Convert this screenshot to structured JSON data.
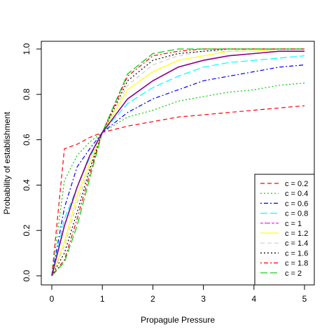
{
  "chart_data": {
    "type": "line",
    "title": "",
    "xlabel": "Propagule Pressure",
    "ylabel": "Probability of establishment",
    "xlim": [
      0,
      5
    ],
    "ylim": [
      0,
      1
    ],
    "x_ticks": [
      "0",
      "1",
      "2",
      "3",
      "4",
      "5"
    ],
    "y_ticks": [
      "0.0",
      "0.2",
      "0.4",
      "0.6",
      "0.8",
      "1.0"
    ],
    "grid": false,
    "legend_position": "bottom-right",
    "x": [
      0,
      0.25,
      0.5,
      0.75,
      1,
      1.5,
      2,
      2.5,
      3,
      3.5,
      4,
      4.5,
      5
    ],
    "series": [
      {
        "name": "c = 0.2",
        "color": "#ff0000",
        "dash": "dashed",
        "values": [
          0,
          0.56,
          0.58,
          0.61,
          0.632,
          0.66,
          0.68,
          0.7,
          0.71,
          0.72,
          0.73,
          0.74,
          0.75
        ]
      },
      {
        "name": "c = 0.4",
        "color": "#00cc00",
        "dash": "dotted",
        "values": [
          0,
          0.42,
          0.53,
          0.59,
          0.632,
          0.7,
          0.73,
          0.77,
          0.79,
          0.81,
          0.82,
          0.84,
          0.85
        ]
      },
      {
        "name": "c = 0.6",
        "color": "#0000ff",
        "dash": "dotdash",
        "values": [
          0,
          0.3,
          0.48,
          0.56,
          0.632,
          0.72,
          0.78,
          0.82,
          0.86,
          0.88,
          0.9,
          0.92,
          0.93
        ]
      },
      {
        "name": "c = 0.8",
        "color": "#00ffff",
        "dash": "longdash",
        "values": [
          0,
          0.25,
          0.39,
          0.52,
          0.632,
          0.76,
          0.83,
          0.88,
          0.92,
          0.94,
          0.95,
          0.96,
          0.97
        ]
      },
      {
        "name": "c = 1",
        "color": "#ff00ff",
        "dash": "twodash",
        "values": [
          0,
          0.22,
          0.39,
          0.53,
          0.632,
          0.78,
          0.86,
          0.92,
          0.95,
          0.97,
          0.98,
          0.99,
          0.99
        ]
      },
      {
        "name": "c = 1.2",
        "color": "#ffff00",
        "dash": "solid",
        "values": [
          0,
          0.15,
          0.35,
          0.5,
          0.632,
          0.82,
          0.9,
          0.95,
          0.97,
          0.99,
          0.99,
          1.0,
          1.0
        ]
      },
      {
        "name": "c = 1.4",
        "color": "#cccccc",
        "dash": "dashed",
        "values": [
          0,
          0.13,
          0.32,
          0.48,
          0.632,
          0.84,
          0.93,
          0.97,
          0.99,
          0.99,
          1.0,
          1.0,
          1.0
        ]
      },
      {
        "name": "c = 1.6",
        "color": "#000000",
        "dash": "dotted",
        "values": [
          0,
          0.1,
          0.28,
          0.47,
          0.632,
          0.86,
          0.95,
          0.98,
          0.99,
          1.0,
          1.0,
          1.0,
          1.0
        ]
      },
      {
        "name": "c = 1.8",
        "color": "#ff0000",
        "dash": "dotdash",
        "values": [
          0,
          0.07,
          0.25,
          0.45,
          0.632,
          0.88,
          0.97,
          0.99,
          1.0,
          1.0,
          1.0,
          1.0,
          1.0
        ]
      },
      {
        "name": "c = 2",
        "color": "#00cc00",
        "dash": "longdash",
        "values": [
          0,
          0.06,
          0.22,
          0.43,
          0.632,
          0.89,
          0.98,
          1.0,
          1.0,
          1.0,
          1.0,
          1.0,
          1.0
        ]
      },
      {
        "name": "",
        "color": "#8b008b",
        "dash": "solid",
        "values": [
          0,
          0.22,
          0.39,
          0.53,
          0.632,
          0.78,
          0.86,
          0.92,
          0.95,
          0.97,
          0.98,
          0.99,
          0.99
        ]
      }
    ]
  }
}
